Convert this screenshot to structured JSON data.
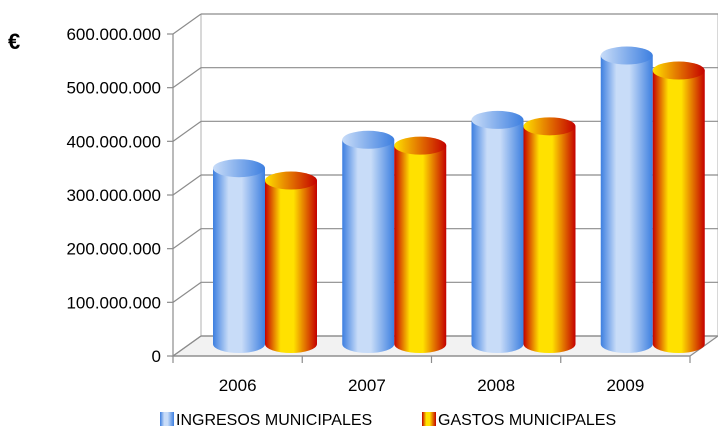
{
  "chart_data": {
    "type": "bar",
    "title": "",
    "xlabel": "",
    "ylabel": "€",
    "categories": [
      "2006",
      "2007",
      "2008",
      "2009"
    ],
    "ylim": [
      0,
      600000000
    ],
    "yticks": [
      0,
      100000000,
      200000000,
      300000000,
      400000000,
      500000000,
      600000000
    ],
    "ytick_labels": [
      "0",
      "100.000.000",
      "200.000.000",
      "300.000.000",
      "400.000.000",
      "500.000.000",
      "600.000.000"
    ],
    "grid": true,
    "legend_position": "bottom",
    "series": [
      {
        "name": "INGRESOS MUNICIPALES",
        "values": [
          335000000,
          388000000,
          425000000,
          545000000
        ],
        "color_light": "#c8dcf8",
        "color_dark": "#3d7fe0"
      },
      {
        "name": "GASTOS MUNICIPALES",
        "values": [
          312000000,
          377000000,
          413000000,
          517000000
        ],
        "color_light": "#ffe100",
        "color_dark": "#c40000"
      }
    ]
  }
}
